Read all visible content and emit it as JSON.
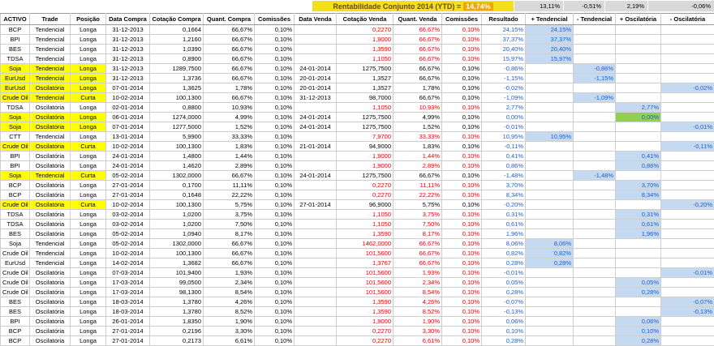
{
  "banner": {
    "label": "Rentabilidade Conjunto 2014 (YTD) =",
    "value": "14,74%"
  },
  "summary": [
    "13,11%",
    "-0,51%",
    "2,19%",
    "-0,06%"
  ],
  "headers": [
    "ACTIVO",
    "Trade",
    "Posição",
    "Data Compra",
    "Cotação Compra",
    "Quant. Compra",
    "Comissões",
    "Data Venda",
    "Cotação Venda",
    "Quant. Venda",
    "Comissões",
    "Resultado",
    "+ Tendencial",
    "- Tendencial",
    "+ Oscilatória",
    "- Oscilatória"
  ],
  "rows": [
    {
      "a": "BCP",
      "t": "Tendencial",
      "p": "Longa",
      "dc": "31-12-2013",
      "cc": "0,1664",
      "qc": "66,67%",
      "c1": "0,10%",
      "dv": "",
      "cv": "0,2270",
      "qv": "66,67%",
      "c2": "0,10%",
      "r": "24,15%",
      "pt": "24,15%",
      "mt": "",
      "po": "",
      "mo": "",
      "hl": false,
      "sell": "red"
    },
    {
      "a": "BPI",
      "t": "Tendencial",
      "p": "Longa",
      "dc": "31-12-2013",
      "cc": "1,2160",
      "qc": "66,67%",
      "c1": "0,10%",
      "dv": "",
      "cv": "1,9000",
      "qv": "66,67%",
      "c2": "0,10%",
      "r": "37,37%",
      "pt": "37,37%",
      "mt": "",
      "po": "",
      "mo": "",
      "hl": false,
      "sell": "red"
    },
    {
      "a": "BES",
      "t": "Tendencial",
      "p": "Longa",
      "dc": "31-12-2013",
      "cc": "1,0390",
      "qc": "66,67%",
      "c1": "0,10%",
      "dv": "",
      "cv": "1,3590",
      "qv": "66,67%",
      "c2": "0,10%",
      "r": "20,40%",
      "pt": "20,40%",
      "mt": "",
      "po": "",
      "mo": "",
      "hl": false,
      "sell": "red"
    },
    {
      "a": "TDSA",
      "t": "Tendencial",
      "p": "Longa",
      "dc": "31-12-2013",
      "cc": "0,8900",
      "qc": "66,67%",
      "c1": "0,10%",
      "dv": "",
      "cv": "1,1050",
      "qv": "66,67%",
      "c2": "0,10%",
      "r": "15,97%",
      "pt": "15,97%",
      "mt": "",
      "po": "",
      "mo": "",
      "hl": false,
      "sell": "red"
    },
    {
      "a": "Soja",
      "t": "Tendencial",
      "p": "Longa",
      "dc": "31-12-2013",
      "cc": "1289,7500",
      "qc": "66,67%",
      "c1": "0,10%",
      "dv": "24-01-2014",
      "cv": "1275,7500",
      "qv": "66,67%",
      "c2": "0,10%",
      "r": "-0,86%",
      "pt": "",
      "mt": "-0,86%",
      "po": "",
      "mo": "",
      "hl": true,
      "sell": "dark"
    },
    {
      "a": "EurUsd",
      "t": "Tendencial",
      "p": "Longa",
      "dc": "31-12-2013",
      "cc": "1,3736",
      "qc": "66,67%",
      "c1": "0,10%",
      "dv": "20-01-2014",
      "cv": "1,3527",
      "qv": "66,67%",
      "c2": "0,10%",
      "r": "-1,15%",
      "pt": "",
      "mt": "-1,15%",
      "po": "",
      "mo": "",
      "hl": true,
      "sell": "dark"
    },
    {
      "a": "EurUsd",
      "t": "Oscilatória",
      "p": "Longa",
      "dc": "07-01-2014",
      "cc": "1,3625",
      "qc": "1,78%",
      "c1": "0,10%",
      "dv": "20-01-2014",
      "cv": "1,3527",
      "qv": "1,78%",
      "c2": "0,10%",
      "r": "-0,02%",
      "pt": "",
      "mt": "",
      "po": "",
      "mo": "-0,02%",
      "hl": true,
      "sell": "dark"
    },
    {
      "a": "Crude Oil",
      "t": "Tendencial",
      "p": "Curta",
      "dc": "10-02-2014",
      "cc": "100,1300",
      "qc": "66,67%",
      "c1": "0,10%",
      "dv": "31-12-2013",
      "cv": "98,7000",
      "qv": "66,67%",
      "c2": "0,10%",
      "r": "-1,09%",
      "pt": "",
      "mt": "-1,09%",
      "po": "",
      "mo": "",
      "hl": true,
      "sell": "dark"
    },
    {
      "a": "TDSA",
      "t": "Oscilatória",
      "p": "Longa",
      "dc": "02-01-2014",
      "cc": "0,8800",
      "qc": "10,93%",
      "c1": "0,10%",
      "dv": "",
      "cv": "1,1050",
      "qv": "10,93%",
      "c2": "0,10%",
      "r": "2,77%",
      "pt": "",
      "mt": "",
      "po": "2,77%",
      "mo": "",
      "hl": false,
      "sell": "red"
    },
    {
      "a": "Soja",
      "t": "Oscilatória",
      "p": "Longa",
      "dc": "06-01-2014",
      "cc": "1274,0000",
      "qc": "4,99%",
      "c1": "0,10%",
      "dv": "24-01-2014",
      "cv": "1275,7500",
      "qv": "4,99%",
      "c2": "0,10%",
      "r": "0,00%",
      "pt": "",
      "mt": "",
      "po": "0,00%",
      "mo": "",
      "hl": true,
      "sell": "dark",
      "green": true
    },
    {
      "a": "Soja",
      "t": "Oscilatória",
      "p": "Longa",
      "dc": "07-01-2014",
      "cc": "1277,5000",
      "qc": "1,52%",
      "c1": "0,10%",
      "dv": "24-01-2014",
      "cv": "1275,7500",
      "qv": "1,52%",
      "c2": "0,10%",
      "r": "-0,01%",
      "pt": "",
      "mt": "",
      "po": "",
      "mo": "-0,01%",
      "hl": true,
      "sell": "dark"
    },
    {
      "a": "CTT",
      "t": "Tendencial",
      "p": "Longa",
      "dc": "13-01-2014",
      "cc": "5,9900",
      "qc": "33,33%",
      "c1": "0,10%",
      "dv": "",
      "cv": "7,9700",
      "qv": "33,33%",
      "c2": "0,10%",
      "r": "10,95%",
      "pt": "10,95%",
      "mt": "",
      "po": "",
      "mo": "",
      "hl": false,
      "sell": "red"
    },
    {
      "a": "Crude Oil",
      "t": "Oscilatória",
      "p": "Curta",
      "dc": "10-02-2014",
      "cc": "100,1300",
      "qc": "1,83%",
      "c1": "0,10%",
      "dv": "21-01-2014",
      "cv": "94,9000",
      "qv": "1,83%",
      "c2": "0,10%",
      "r": "-0,11%",
      "pt": "",
      "mt": "",
      "po": "",
      "mo": "-0,11%",
      "hl": true,
      "sell": "dark"
    },
    {
      "a": "BPI",
      "t": "Oscilatória",
      "p": "Longa",
      "dc": "24-01-2014",
      "cc": "1,4800",
      "qc": "1,44%",
      "c1": "0,10%",
      "dv": "",
      "cv": "1,9000",
      "qv": "1,44%",
      "c2": "0,10%",
      "r": "0,41%",
      "pt": "",
      "mt": "",
      "po": "0,41%",
      "mo": "",
      "hl": false,
      "sell": "red"
    },
    {
      "a": "BPI",
      "t": "Oscilatória",
      "p": "Longa",
      "dc": "24-01-2014",
      "cc": "1,4620",
      "qc": "2,89%",
      "c1": "0,10%",
      "dv": "",
      "cv": "1,9000",
      "qv": "2,89%",
      "c2": "0,10%",
      "r": "0,86%",
      "pt": "",
      "mt": "",
      "po": "0,86%",
      "mo": "",
      "hl": false,
      "sell": "red"
    },
    {
      "a": "Soja",
      "t": "Tendencial",
      "p": "Curta",
      "dc": "05-02-2014",
      "cc": "1302,0000",
      "qc": "66,67%",
      "c1": "0,10%",
      "dv": "24-01-2014",
      "cv": "1275,7500",
      "qv": "66,67%",
      "c2": "0,10%",
      "r": "-1,48%",
      "pt": "",
      "mt": "-1,48%",
      "po": "",
      "mo": "",
      "hl": true,
      "sell": "dark"
    },
    {
      "a": "BCP",
      "t": "Oscilatória",
      "p": "Longa",
      "dc": "27-01-2014",
      "cc": "0,1700",
      "qc": "11,11%",
      "c1": "0,10%",
      "dv": "",
      "cv": "0,2270",
      "qv": "11,11%",
      "c2": "0,10%",
      "r": "3,70%",
      "pt": "",
      "mt": "",
      "po": "3,70%",
      "mo": "",
      "hl": false,
      "sell": "red"
    },
    {
      "a": "BCP",
      "t": "Oscilatória",
      "p": "Longa",
      "dc": "27-01-2014",
      "cc": "0,1648",
      "qc": "22,22%",
      "c1": "0,10%",
      "dv": "",
      "cv": "0,2270",
      "qv": "22,22%",
      "c2": "0,10%",
      "r": "8,34%",
      "pt": "",
      "mt": "",
      "po": "8,34%",
      "mo": "",
      "hl": false,
      "sell": "red"
    },
    {
      "a": "Crude Oil",
      "t": "Oscilatória",
      "p": "Curta",
      "dc": "10-02-2014",
      "cc": "100,1300",
      "qc": "5,75%",
      "c1": "0,10%",
      "dv": "27-01-2014",
      "cv": "96,9000",
      "qv": "5,75%",
      "c2": "0,10%",
      "r": "-0,20%",
      "pt": "",
      "mt": "",
      "po": "",
      "mo": "-0,20%",
      "hl": true,
      "sell": "dark"
    },
    {
      "a": "TDSA",
      "t": "Oscilatória",
      "p": "Longa",
      "dc": "03-02-2014",
      "cc": "1,0200",
      "qc": "3,75%",
      "c1": "0,10%",
      "dv": "",
      "cv": "1,1050",
      "qv": "3,75%",
      "c2": "0,10%",
      "r": "0,31%",
      "pt": "",
      "mt": "",
      "po": "0,31%",
      "mo": "",
      "hl": false,
      "sell": "red"
    },
    {
      "a": "TDSA",
      "t": "Oscilatória",
      "p": "Longa",
      "dc": "03-02-2014",
      "cc": "1,0200",
      "qc": "7,50%",
      "c1": "0,10%",
      "dv": "",
      "cv": "1,1050",
      "qv": "7,50%",
      "c2": "0,10%",
      "r": "0,61%",
      "pt": "",
      "mt": "",
      "po": "0,61%",
      "mo": "",
      "hl": false,
      "sell": "red"
    },
    {
      "a": "BES",
      "t": "Oscilatória",
      "p": "Longa",
      "dc": "05-02-2014",
      "cc": "1,0940",
      "qc": "8,17%",
      "c1": "0,10%",
      "dv": "",
      "cv": "1,3590",
      "qv": "8,17%",
      "c2": "0,10%",
      "r": "1,96%",
      "pt": "",
      "mt": "",
      "po": "1,96%",
      "mo": "",
      "hl": false,
      "sell": "red"
    },
    {
      "a": "Soja",
      "t": "Tendencial",
      "p": "Longa",
      "dc": "05-02-2014",
      "cc": "1302,0000",
      "qc": "66,67%",
      "c1": "0,10%",
      "dv": "",
      "cv": "1462,0000",
      "qv": "66,67%",
      "c2": "0,10%",
      "r": "8,06%",
      "pt": "8,06%",
      "mt": "",
      "po": "",
      "mo": "",
      "hl": false,
      "sell": "red"
    },
    {
      "a": "Crude Oil",
      "t": "Tendencial",
      "p": "Longa",
      "dc": "10-02-2014",
      "cc": "100,1300",
      "qc": "66,67%",
      "c1": "0,10%",
      "dv": "",
      "cv": "101,5600",
      "qv": "66,67%",
      "c2": "0,10%",
      "r": "0,82%",
      "pt": "0,82%",
      "mt": "",
      "po": "",
      "mo": "",
      "hl": false,
      "sell": "red"
    },
    {
      "a": "EurUsd",
      "t": "Tendencial",
      "p": "Longa",
      "dc": "14-02-2014",
      "cc": "1,3682",
      "qc": "66,67%",
      "c1": "0,10%",
      "dv": "",
      "cv": "1,3767",
      "qv": "66,67%",
      "c2": "0,10%",
      "r": "0,28%",
      "pt": "0,28%",
      "mt": "",
      "po": "",
      "mo": "",
      "hl": false,
      "sell": "red"
    },
    {
      "a": "Crude Oil",
      "t": "Oscilatória",
      "p": "Longa",
      "dc": "07-03-2014",
      "cc": "101,9400",
      "qc": "1,93%",
      "c1": "0,10%",
      "dv": "",
      "cv": "101,5600",
      "qv": "1,93%",
      "c2": "0,10%",
      "r": "-0,01%",
      "pt": "",
      "mt": "",
      "po": "",
      "mo": "-0,01%",
      "hl": false,
      "sell": "red"
    },
    {
      "a": "Crude Oil",
      "t": "Oscilatória",
      "p": "Longa",
      "dc": "17-03-2014",
      "cc": "99,0500",
      "qc": "2,34%",
      "c1": "0,10%",
      "dv": "",
      "cv": "101,5600",
      "qv": "2,34%",
      "c2": "0,10%",
      "r": "0,05%",
      "pt": "",
      "mt": "",
      "po": "0,05%",
      "mo": "",
      "hl": false,
      "sell": "red"
    },
    {
      "a": "Crude Oil",
      "t": "Oscilatória",
      "p": "Longa",
      "dc": "17-03-2014",
      "cc": "98,1300",
      "qc": "8,54%",
      "c1": "0,10%",
      "dv": "",
      "cv": "101,5600",
      "qv": "8,54%",
      "c2": "0,10%",
      "r": "0,28%",
      "pt": "",
      "mt": "",
      "po": "0,28%",
      "mo": "",
      "hl": false,
      "sell": "red"
    },
    {
      "a": "BES",
      "t": "Oscilatória",
      "p": "Longa",
      "dc": "18-03-2014",
      "cc": "1,3780",
      "qc": "4,26%",
      "c1": "0,10%",
      "dv": "",
      "cv": "1,3590",
      "qv": "4,26%",
      "c2": "0,10%",
      "r": "-0,07%",
      "pt": "",
      "mt": "",
      "po": "",
      "mo": "-0,07%",
      "hl": false,
      "sell": "red"
    },
    {
      "a": "BES",
      "t": "Oscilatória",
      "p": "Longa",
      "dc": "18-03-2014",
      "cc": "1,3780",
      "qc": "8,52%",
      "c1": "0,10%",
      "dv": "",
      "cv": "1,3590",
      "qv": "8,52%",
      "c2": "0,10%",
      "r": "-0,13%",
      "pt": "",
      "mt": "",
      "po": "",
      "mo": "-0,13%",
      "hl": false,
      "sell": "red"
    },
    {
      "a": "BPI",
      "t": "Oscilatória",
      "p": "Longa",
      "dc": "26-01-2014",
      "cc": "1,8350",
      "qc": "1,90%",
      "c1": "0,10%",
      "dv": "",
      "cv": "1,9000",
      "qv": "1,90%",
      "c2": "0,10%",
      "r": "0,06%",
      "pt": "",
      "mt": "",
      "po": "0,06%",
      "mo": "",
      "hl": false,
      "sell": "red"
    },
    {
      "a": "BCP",
      "t": "Oscilatória",
      "p": "Longa",
      "dc": "27-01-2014",
      "cc": "0,2196",
      "qc": "3,30%",
      "c1": "0,10%",
      "dv": "",
      "cv": "0,2270",
      "qv": "3,30%",
      "c2": "0,10%",
      "r": "0,10%",
      "pt": "",
      "mt": "",
      "po": "0,10%",
      "mo": "",
      "hl": false,
      "sell": "red"
    },
    {
      "a": "BCP",
      "t": "Oscilatória",
      "p": "Longa",
      "dc": "27-01-2014",
      "cc": "0,2173",
      "qc": "6,61%",
      "c1": "0,10%",
      "dv": "",
      "cv": "0,2270",
      "qv": "6,61%",
      "c2": "0,10%",
      "r": "0,28%",
      "pt": "",
      "mt": "",
      "po": "0,28%",
      "mo": "",
      "hl": false,
      "sell": "red"
    }
  ]
}
